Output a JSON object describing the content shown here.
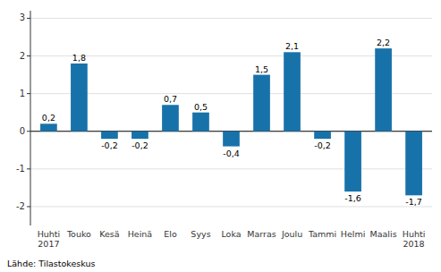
{
  "chart_data": {
    "type": "bar",
    "categories": [
      "Huhti\n2017",
      "Touko",
      "Kesä",
      "Heinä",
      "Elo",
      "Syys",
      "Loka",
      "Marras",
      "Joulu",
      "Tammi",
      "Helmi",
      "Maalis",
      "Huhti\n2018"
    ],
    "values": [
      0.2,
      1.8,
      -0.2,
      -0.2,
      0.7,
      0.5,
      -0.4,
      1.5,
      2.1,
      -0.2,
      -1.6,
      2.2,
      -1.7
    ],
    "value_labels": [
      "0,2",
      "1,8",
      "-0,2",
      "-0,2",
      "0,7",
      "0,5",
      "-0,4",
      "1,5",
      "2,1",
      "-0,2",
      "-1,6",
      "2,2",
      "-1,7"
    ],
    "data_labels": true,
    "color": "#1872aa",
    "ylim": [
      -2.5,
      3.2
    ],
    "yticks": [
      -2,
      -1,
      0,
      1,
      2,
      3
    ],
    "grid": true,
    "footer": "Lähde: Tilastokeskus"
  }
}
